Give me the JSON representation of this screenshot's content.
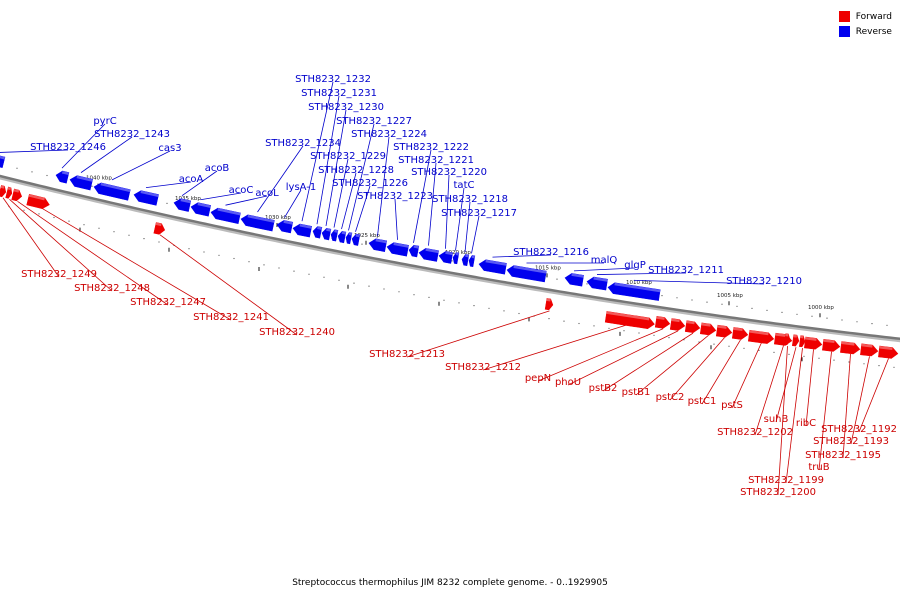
{
  "caption": "Streptococcus thermophilus JIM 8232 complete genome. - 0..1929905",
  "legend": {
    "forward": {
      "label": "Forward",
      "color": "#ee0000"
    },
    "reverse": {
      "label": "Reverse",
      "color": "#0000ee"
    }
  },
  "colors": {
    "backbone": "#777777",
    "label_forward": "#cc0000",
    "label_reverse": "#0000cc"
  },
  "ticks": [
    "1040 kbp",
    "1035 kbp",
    "1030 kbp",
    "1025 kbp",
    "1020 kbp",
    "1015 kbp",
    "1010 kbp",
    "1005 kbp",
    "1000 kbp"
  ],
  "reverse_genes": [
    "STH8232_1246",
    "pyrC",
    "STH8232_1243",
    "cas3",
    "acoA",
    "acoB",
    "acoC",
    "acoL",
    "STH8232_1234",
    "lysA-1",
    "STH8232_1232",
    "STH8232_1231",
    "STH8232_1230",
    "STH8232_1229",
    "STH8232_1228",
    "STH8232_1227",
    "STH8232_1226",
    "STH8232_1224",
    "STH8232_1223",
    "STH8232_1222",
    "STH8232_1221",
    "STH8232_1220",
    "tatC",
    "STH8232_1218",
    "STH8232_1217",
    "STH8232_1216",
    "malQ",
    "glgP",
    "STH8232_1211",
    "STH8232_1210"
  ],
  "forward_genes": [
    "STH8232_1249",
    "STH8232_1248",
    "STH8232_1247",
    "STH8232_1241",
    "STH8232_1240",
    "STH8232_1213",
    "STH8232_1212",
    "pepN",
    "phoU",
    "pstB2",
    "pstB1",
    "pstC2",
    "pstC1",
    "pstS",
    "STH8232_1202",
    "suhB",
    "ribC",
    "STH8232_1199",
    "STH8232_1200",
    "truB",
    "STH8232_1195",
    "STH8232_1193",
    "STH8232_1192"
  ]
}
